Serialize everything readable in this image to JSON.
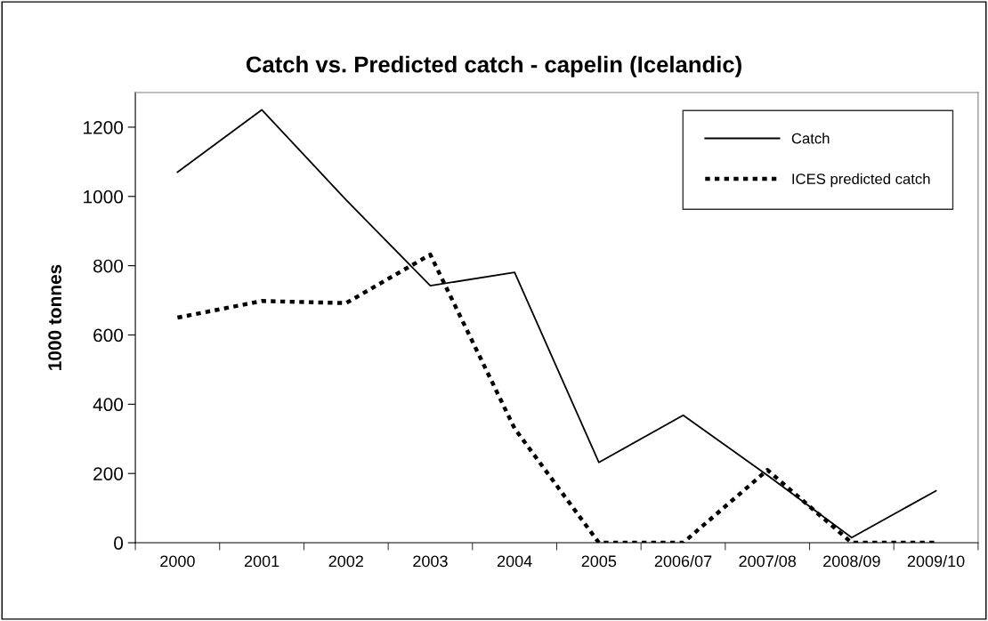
{
  "chart_data": {
    "type": "line",
    "title": "Catch vs. Predicted catch - capelin (Icelandic)",
    "ylabel": "1000 tonnes",
    "categories": [
      "2000",
      "2001",
      "2002",
      "2003",
      "2004",
      "2005",
      "2006/07",
      "2007/08",
      "2008/09",
      "2009/10"
    ],
    "series": [
      {
        "name": "Catch",
        "color": "#000000",
        "line_style": "solid",
        "values": [
          1070,
          1250,
          990,
          742,
          781,
          232,
          368,
          195,
          15,
          150
        ]
      },
      {
        "name": "ICES predicted catch",
        "color": "#000000",
        "line_style": "dotted",
        "values": [
          650,
          698,
          692,
          832,
          330,
          0,
          0,
          210,
          0,
          0
        ]
      }
    ],
    "ylim": [
      0,
      1300
    ],
    "yticks": [
      0,
      200,
      400,
      600,
      800,
      1000,
      1200
    ],
    "grid": false,
    "legend": "top right",
    "marker": "none"
  }
}
